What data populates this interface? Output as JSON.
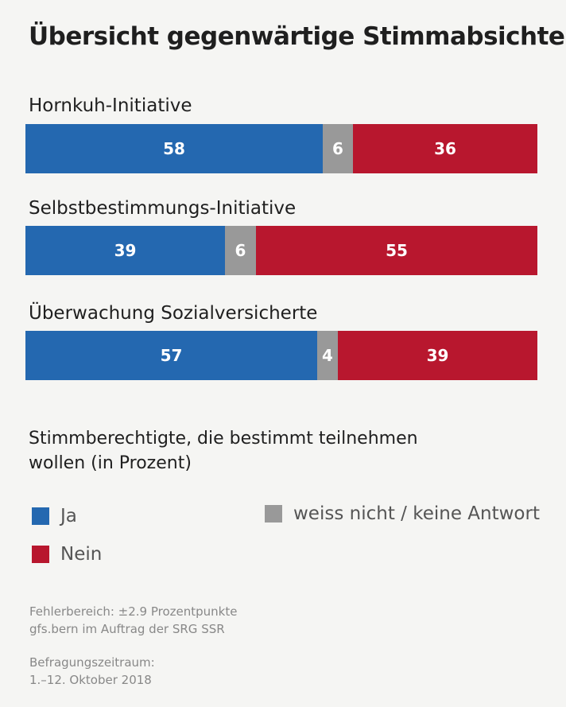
{
  "chart_data": {
    "type": "bar",
    "stacked": true,
    "orientation": "horizontal",
    "title": "Übersicht gegenwärtige Stimmabsichten",
    "categories": [
      "Hornkuh-Initiative",
      "Selbstbestimmungs-Initiative",
      "Überwachung Sozialversicherte"
    ],
    "series": [
      {
        "name": "Ja",
        "color": "#2468b0",
        "values": [
          58,
          39,
          57
        ]
      },
      {
        "name": "weiss nicht / keine Antwort",
        "color": "#999999",
        "values": [
          6,
          6,
          4
        ]
      },
      {
        "name": "Nein",
        "color": "#b8172e",
        "values": [
          36,
          55,
          39
        ]
      }
    ],
    "xlim": [
      0,
      100
    ]
  },
  "subtitle": "Stimmberechtigte, die bestimmt teilnehmen wollen (in Prozent)",
  "legend": {
    "ja": "Ja",
    "nein": "Nein",
    "unknown": "weiss nicht / keine Antwort"
  },
  "notes": {
    "error_margin": "Fehlerbereich: ±2.9 Prozentpunkte",
    "source": "gfs.bern im Auftrag der SRG SSR",
    "period_label": "Befragungszeitraum:",
    "period_value": "1.–12. Oktober 2018"
  }
}
